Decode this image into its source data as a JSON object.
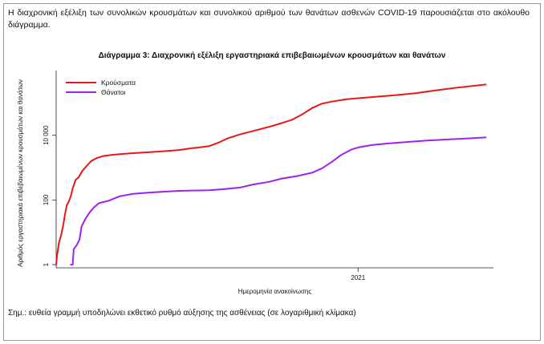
{
  "intro_text": "Η διαχρονική εξέλιξη των συνολικών κρουσμάτων και συνολικού αριθμού των θανάτων ασθενών COVID-19 παρουσιάζεται στο ακόλουθο διάγραμμα.",
  "note_text": "Σημ.: ευθεία γραμμή υποδηλώνει εκθετικό ρυθμό αύξησης της ασθένειας (σε λογαριθμική κλίμακα)",
  "chart_data": {
    "type": "line",
    "title": "Διάγραμμα 3: Διαχρονική εξέλιξη εργαστηριακά επιβεβαιωμένων κρουσμάτων και θανάτων",
    "xlabel": "Ημερομηνία ανακοίνωσης",
    "ylabel": "Αριθμός εργαστηριακά επιβεβαιωμένων κρουσμάτων και θανάτων",
    "yscale": "log",
    "ylim": [
      0.8,
      1000000
    ],
    "yticks": [
      {
        "value": 1,
        "label": "1"
      },
      {
        "value": 100,
        "label": "100"
      },
      {
        "value": 10000,
        "label": "10 000"
      }
    ],
    "xlim": [
      "2020-02-26",
      "2021-05-20"
    ],
    "xticks": [
      {
        "value": "2021-01-01",
        "label": "2021"
      }
    ],
    "grid": false,
    "legend_position": "top-left",
    "series": [
      {
        "name": "Κρούσματα",
        "color": "#e8161b",
        "points": [
          [
            "2020-02-26",
            1
          ],
          [
            "2020-02-27",
            2
          ],
          [
            "2020-02-29",
            5
          ],
          [
            "2020-03-02",
            8
          ],
          [
            "2020-03-04",
            15
          ],
          [
            "2020-03-06",
            35
          ],
          [
            "2020-03-08",
            70
          ],
          [
            "2020-03-10",
            90
          ],
          [
            "2020-03-12",
            130
          ],
          [
            "2020-03-14",
            230
          ],
          [
            "2020-03-17",
            420
          ],
          [
            "2020-03-20",
            500
          ],
          [
            "2020-03-24",
            800
          ],
          [
            "2020-03-28",
            1100
          ],
          [
            "2020-04-02",
            1600
          ],
          [
            "2020-04-08",
            2000
          ],
          [
            "2020-04-15",
            2300
          ],
          [
            "2020-04-22",
            2450
          ],
          [
            "2020-05-01",
            2600
          ],
          [
            "2020-05-15",
            2800
          ],
          [
            "2020-06-01",
            3000
          ],
          [
            "2020-06-15",
            3200
          ],
          [
            "2020-07-01",
            3500
          ],
          [
            "2020-07-15",
            4000
          ],
          [
            "2020-08-01",
            4600
          ],
          [
            "2020-08-10",
            5800
          ],
          [
            "2020-08-20",
            8000
          ],
          [
            "2020-09-01",
            10500
          ],
          [
            "2020-09-15",
            13500
          ],
          [
            "2020-10-01",
            18000
          ],
          [
            "2020-10-15",
            24000
          ],
          [
            "2020-10-25",
            30000
          ],
          [
            "2020-11-05",
            45000
          ],
          [
            "2020-11-15",
            70000
          ],
          [
            "2020-11-25",
            95000
          ],
          [
            "2020-12-05",
            110000
          ],
          [
            "2020-12-20",
            130000
          ],
          [
            "2021-01-01",
            140000
          ],
          [
            "2021-01-20",
            155000
          ],
          [
            "2021-02-10",
            175000
          ],
          [
            "2021-03-01",
            200000
          ],
          [
            "2021-03-20",
            240000
          ],
          [
            "2021-04-10",
            290000
          ],
          [
            "2021-05-01",
            340000
          ],
          [
            "2021-05-12",
            370000
          ]
        ]
      },
      {
        "name": "Θάνατοι",
        "color": "#a020f0",
        "points": [
          [
            "2020-03-12",
            1
          ],
          [
            "2020-03-14",
            1
          ],
          [
            "2020-03-15",
            3
          ],
          [
            "2020-03-18",
            4
          ],
          [
            "2020-03-21",
            6
          ],
          [
            "2020-03-23",
            15
          ],
          [
            "2020-03-27",
            26
          ],
          [
            "2020-03-31",
            40
          ],
          [
            "2020-04-05",
            60
          ],
          [
            "2020-04-10",
            80
          ],
          [
            "2020-04-20",
            95
          ],
          [
            "2020-05-01",
            130
          ],
          [
            "2020-05-15",
            155
          ],
          [
            "2020-06-01",
            170
          ],
          [
            "2020-06-15",
            180
          ],
          [
            "2020-07-01",
            192
          ],
          [
            "2020-07-15",
            196
          ],
          [
            "2020-08-01",
            200
          ],
          [
            "2020-08-15",
            215
          ],
          [
            "2020-09-01",
            240
          ],
          [
            "2020-09-15",
            300
          ],
          [
            "2020-10-01",
            360
          ],
          [
            "2020-10-15",
            460
          ],
          [
            "2020-11-01",
            560
          ],
          [
            "2020-11-15",
            700
          ],
          [
            "2020-11-25",
            950
          ],
          [
            "2020-12-05",
            1500
          ],
          [
            "2020-12-15",
            2500
          ],
          [
            "2020-12-25",
            3600
          ],
          [
            "2021-01-01",
            4200
          ],
          [
            "2021-01-15",
            5000
          ],
          [
            "2021-02-01",
            5600
          ],
          [
            "2021-02-20",
            6200
          ],
          [
            "2021-03-10",
            6800
          ],
          [
            "2021-04-01",
            7400
          ],
          [
            "2021-04-20",
            7900
          ],
          [
            "2021-05-12",
            8600
          ]
        ]
      }
    ]
  }
}
